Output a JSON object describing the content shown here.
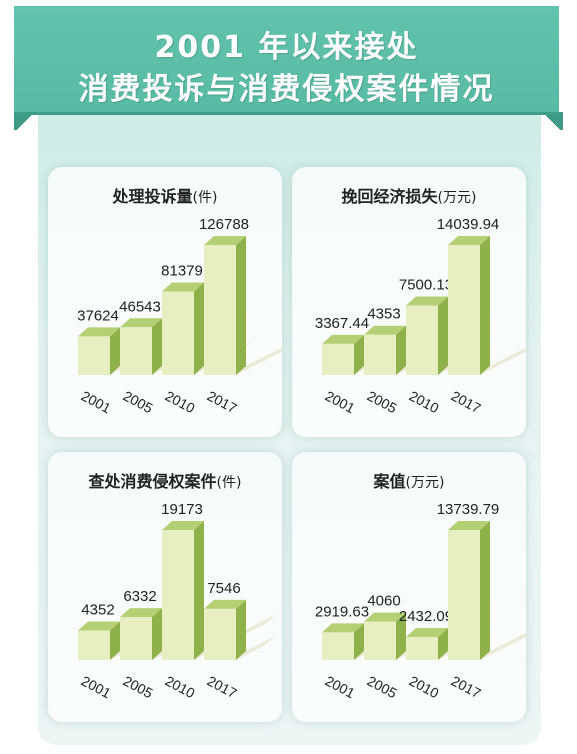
{
  "header": {
    "line1": "2001 年以来接处",
    "line2": "消费投诉与消费侵权案件情况"
  },
  "colors": {
    "banner": "#5dbfa8",
    "bar_front": "#e7efc2",
    "bar_side": "#8eb14a",
    "bar_top": "#b5cf74"
  },
  "chart_data": [
    {
      "type": "bar",
      "title": "处理投诉量",
      "unit": "(件)",
      "categories": [
        "2001",
        "2005",
        "2010",
        "2017"
      ],
      "values": [
        37624,
        46543,
        81379,
        126788
      ],
      "labels": [
        "37624",
        "46543",
        "81379",
        "126788"
      ]
    },
    {
      "type": "bar",
      "title": "挽回经济损失",
      "unit": "(万元)",
      "categories": [
        "2001",
        "2005",
        "2010",
        "2017"
      ],
      "values": [
        3367.44,
        4353,
        7500.13,
        14039.94
      ],
      "labels": [
        "3367.44",
        "4353",
        "7500.13",
        "14039.94"
      ]
    },
    {
      "type": "bar",
      "title": "查处消费侵权案件",
      "unit": "(件)",
      "categories": [
        "2001",
        "2005",
        "2010",
        "2017"
      ],
      "values": [
        4352,
        6332,
        19173,
        7546
      ],
      "labels": [
        "4352",
        "6332",
        "19173",
        "7546"
      ]
    },
    {
      "type": "bar",
      "title": "案值",
      "unit": "(万元)",
      "categories": [
        "2001",
        "2005",
        "2010",
        "2017"
      ],
      "values": [
        2919.63,
        4060,
        2432.09,
        13739.79
      ],
      "labels": [
        "2919.63",
        "4060",
        "2432.09",
        "13739.79"
      ]
    }
  ]
}
